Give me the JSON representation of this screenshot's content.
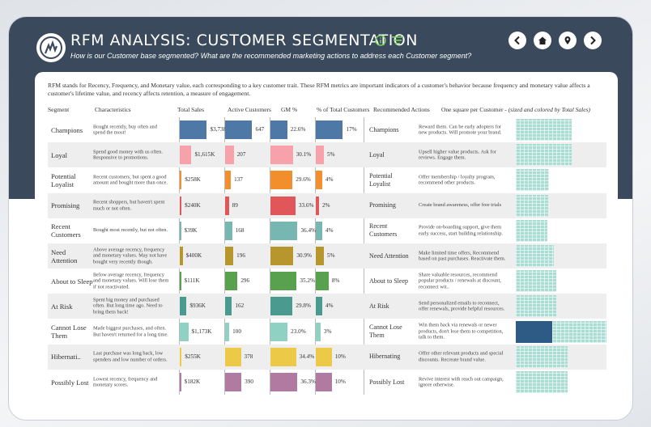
{
  "header": {
    "title": "RFM ANALYSIS: CUSTOMER SEGMENTATION",
    "subtitle": "How is our Customer base segmented? What are the recommended marketing actions to address each Customer segment?",
    "icons": [
      "info-icon",
      "filter-icon"
    ],
    "nav": [
      "back-icon",
      "home-icon",
      "location-icon",
      "forward-icon"
    ]
  },
  "intro": "RFM stands for Recency, Frequency, and Monetary value, each corresponding to a key customer trait. These RFM metrics are important indicators of a customer's behavior because frequency and monetary value affects a customer's lifetime value, and recency affects retention, a measure of engagement.",
  "columns": {
    "segment": "Segment",
    "characteristics": "Characteristics",
    "total_sales": "Total Sales",
    "active_customers": "Active Customers",
    "gm": "GM %",
    "pct_total": "% of Total Customers",
    "recommended": "Recommended Actions",
    "square_note_main": "One square per Customer - ",
    "square_note_italic": "(sized and colored by Total Sales)"
  },
  "colors": {
    "header_bg": "#3a4a5c",
    "treemap_light": "#a9dcd3",
    "treemap_dark": "#2d5b86"
  },
  "rows": [
    {
      "segment": "Champions",
      "characteristics": "Bought recently, buy often and spend the most!",
      "sales": "$3,738K",
      "sales_val": 3738,
      "customers": "647",
      "customers_val": 647,
      "gm": "22.6%",
      "gm_val": 22.6,
      "pct": "17%",
      "pct_val": 17,
      "color": "#4e79a7",
      "rseg": "Champions",
      "rec": "Reward them. Can be early adopters for new products. Will promote your brand.",
      "tm_fill": 0.62,
      "tm_dark": 0
    },
    {
      "segment": "Loyal",
      "characteristics": "Spend good money with us often. Responsive to promotions.",
      "sales": "$1,615K",
      "sales_val": 1615,
      "customers": "207",
      "customers_val": 207,
      "gm": "30.1%",
      "gm_val": 30.1,
      "pct": "5%",
      "pct_val": 5,
      "color": "#f7a1ab",
      "rseg": "Loyal",
      "rec": "Upsell higher value products. Ask for reviews. Engage them.",
      "tm_fill": 0.62,
      "tm_dark": 0
    },
    {
      "segment": "Potential Loyalist",
      "characteristics": "Recent customers, but spent a good amount and bought more than once.",
      "sales": "$258K",
      "sales_val": 258,
      "customers": "137",
      "customers_val": 137,
      "gm": "29.6%",
      "gm_val": 29.6,
      "pct": "4%",
      "pct_val": 4,
      "color": "#f28e2b",
      "rseg": "Potential Loyalist",
      "rec": "Offer membership / loyalty program, recommend other products.",
      "tm_fill": 0.37,
      "tm_dark": 0
    },
    {
      "segment": "Promising",
      "characteristics": "Recent shoppers, but haven't spent much or not often.",
      "sales": "$240K",
      "sales_val": 240,
      "customers": "89",
      "customers_val": 89,
      "gm": "33.6%",
      "gm_val": 33.6,
      "pct": "2%",
      "pct_val": 2,
      "color": "#e15759",
      "rseg": "Promising",
      "rec": "Create brand awareness, offer free trials",
      "tm_fill": 0.36,
      "tm_dark": 0
    },
    {
      "segment": "Recent Customers",
      "characteristics": "Bought most recently, but not often.",
      "sales": "$39K",
      "sales_val": 39,
      "customers": "168",
      "customers_val": 168,
      "gm": "36.4%",
      "gm_val": 36.4,
      "pct": "4%",
      "pct_val": 4,
      "color": "#76b7b2",
      "rseg": "Recent Customers",
      "rec": "Provide on-boarding support, give them early success, start building relationship.",
      "tm_fill": 0.35,
      "tm_dark": 0
    },
    {
      "segment": "Need Attention",
      "characteristics": "Above average recency, frequency and monetary values. May not have bought very recently though.",
      "sales": "$400K",
      "sales_val": 400,
      "customers": "196",
      "customers_val": 196,
      "gm": "30.9%",
      "gm_val": 30.9,
      "pct": "5%",
      "pct_val": 5,
      "color": "#b8962e",
      "rseg": "Need Attention",
      "rec": "Make limited time offers, Recommend based on past purchases. Reactivate them.",
      "tm_fill": 0.42,
      "tm_dark": 0
    },
    {
      "segment": "About to Sleep",
      "characteristics": "Below average recency, frequency and monetary values. Will lose them if not reactivated.",
      "sales": "$111K",
      "sales_val": 111,
      "customers": "296",
      "customers_val": 296,
      "gm": "35.2%",
      "gm_val": 35.2,
      "pct": "8%",
      "pct_val": 8,
      "color": "#59a14f",
      "rseg": "About to Sleep",
      "rec": "Share valuable resources, recommend popular products / renewals at discount, reconnect wit..",
      "tm_fill": 0.45,
      "tm_dark": 0
    },
    {
      "segment": "At Risk",
      "characteristics": "Spent big money and purchased often. But long time ago. Need to bring them back!",
      "sales": "$936K",
      "sales_val": 936,
      "customers": "162",
      "customers_val": 162,
      "gm": "29.8%",
      "gm_val": 29.8,
      "pct": "4%",
      "pct_val": 4,
      "color": "#4a9a8f",
      "rseg": "At Risk",
      "rec": "Send personalized emails to reconnect, offer renewals, provide helpful resources.",
      "tm_fill": 0.45,
      "tm_dark": 0
    },
    {
      "segment": "Cannot Lose Them",
      "characteristics": "Made biggest purchases, and often. But haven't returned for a long time.",
      "sales": "$1,173K",
      "sales_val": 1173,
      "customers": "100",
      "customers_val": 100,
      "gm": "23.0%",
      "gm_val": 23.0,
      "pct": "3%",
      "pct_val": 3,
      "color": "#8fd1c3",
      "rseg": "Cannot Lose Them",
      "rec": "Win them back via renewals or newer products, don't lose them to competition, talk to them.",
      "tm_fill": 1.0,
      "tm_dark": 0.4
    },
    {
      "segment": "Hibernati..",
      "characteristics": "Last purchase was long back, low spenders and low number of orders.",
      "sales": "$255K",
      "sales_val": 255,
      "customers": "378",
      "customers_val": 378,
      "gm": "34.4%",
      "gm_val": 34.4,
      "pct": "10%",
      "pct_val": 10,
      "color": "#edc948",
      "rseg": "Hibernating",
      "rec": "Offer other relevant products and special discounts. Recreate brand value.",
      "tm_fill": 0.57,
      "tm_dark": 0
    },
    {
      "segment": "Possibly Lost",
      "characteristics": "Lowest recency, frequency and monetary scores.",
      "sales": "$182K",
      "sales_val": 182,
      "customers": "390",
      "customers_val": 390,
      "gm": "36.3%",
      "gm_val": 36.3,
      "pct": "10%",
      "pct_val": 10,
      "color": "#b07aa1",
      "rseg": "Possibly Lost",
      "rec": "Revive interest with reach out campaign, ignore otherwise.",
      "tm_fill": 0.57,
      "tm_dark": 0
    }
  ]
}
